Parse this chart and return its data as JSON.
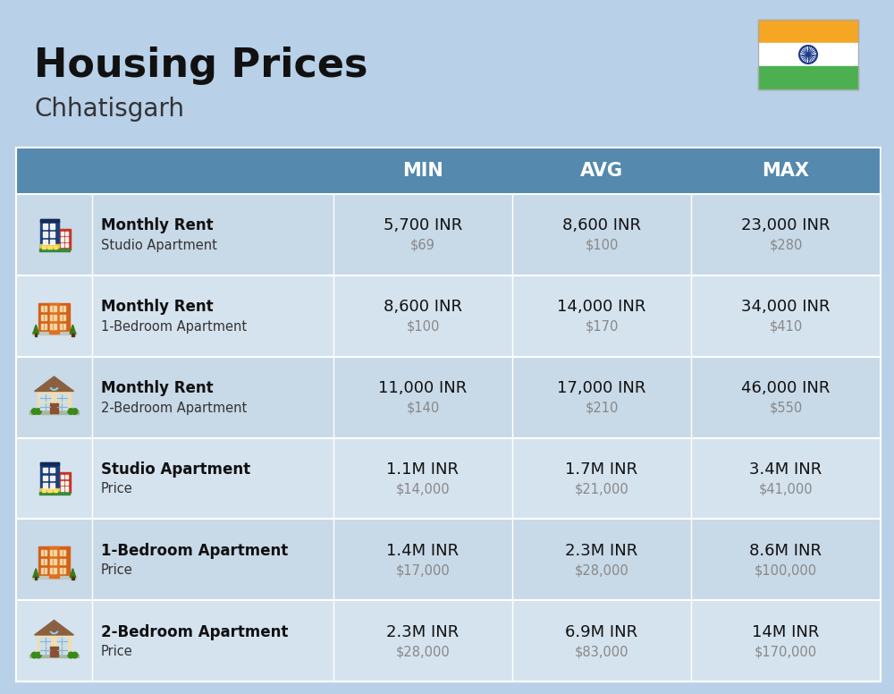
{
  "title": "Housing Prices",
  "subtitle": "Chhatisgarh",
  "bg_color": "#B8D0E8",
  "header_bg": "#5589AE",
  "header_text": "#FFFFFF",
  "row_colors": [
    "#C8D9E8",
    "#D5E3EF"
  ],
  "divider_color": "#FFFFFF",
  "columns": [
    "MIN",
    "AVG",
    "MAX"
  ],
  "rows": [
    {
      "label_bold": "Monthly Rent",
      "label_sub": "Studio Apartment",
      "vals": [
        "5,700 INR",
        "8,600 INR",
        "23,000 INR"
      ],
      "usd": [
        "$69",
        "$100",
        "$280"
      ],
      "icon_type": "blue_tower"
    },
    {
      "label_bold": "Monthly Rent",
      "label_sub": "1-Bedroom Apartment",
      "vals": [
        "8,600 INR",
        "14,000 INR",
        "34,000 INR"
      ],
      "usd": [
        "$100",
        "$170",
        "$410"
      ],
      "icon_type": "orange_block"
    },
    {
      "label_bold": "Monthly Rent",
      "label_sub": "2-Bedroom Apartment",
      "vals": [
        "11,000 INR",
        "17,000 INR",
        "46,000 INR"
      ],
      "usd": [
        "$140",
        "$210",
        "$550"
      ],
      "icon_type": "house_tan"
    },
    {
      "label_bold": "Studio Apartment",
      "label_sub": "Price",
      "vals": [
        "1.1M INR",
        "1.7M INR",
        "3.4M INR"
      ],
      "usd": [
        "$14,000",
        "$21,000",
        "$41,000"
      ],
      "icon_type": "blue_tower"
    },
    {
      "label_bold": "1-Bedroom Apartment",
      "label_sub": "Price",
      "vals": [
        "1.4M INR",
        "2.3M INR",
        "8.6M INR"
      ],
      "usd": [
        "$17,000",
        "$28,000",
        "$100,000"
      ],
      "icon_type": "orange_block"
    },
    {
      "label_bold": "2-Bedroom Apartment",
      "label_sub": "Price",
      "vals": [
        "2.3M INR",
        "6.9M INR",
        "14M INR"
      ],
      "usd": [
        "$28,000",
        "$83,000",
        "$170,000"
      ],
      "icon_type": "house_tan"
    }
  ],
  "flag_orange": "#F5A623",
  "flag_white": "#FFFFFF",
  "flag_green": "#4CAF50",
  "flag_chakra": "#1A3A8A"
}
